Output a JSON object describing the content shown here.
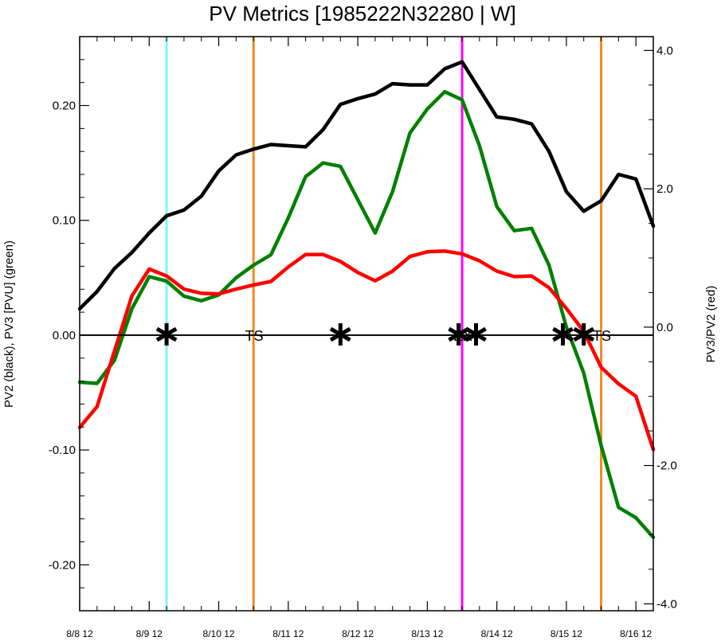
{
  "chart_data": {
    "type": "line",
    "title": "PV Metrics [1985222N32280 | W]",
    "ylabel_left": "PV2 (black), PV3 [PVU] (green)",
    "ylabel_right": "PV3/PV2 (red)",
    "x_ticks": [
      {
        "x": 0,
        "label": "8/8 12"
      },
      {
        "x": 1,
        "label": "8/9 12"
      },
      {
        "x": 2,
        "label": "8/10 12"
      },
      {
        "x": 3,
        "label": "8/11 12"
      },
      {
        "x": 4,
        "label": "8/12 12"
      },
      {
        "x": 5,
        "label": "8/13 12"
      },
      {
        "x": 6,
        "label": "8/14 12"
      },
      {
        "x": 7,
        "label": "8/15 12"
      },
      {
        "x": 8,
        "label": "8/16 12"
      }
    ],
    "xlim": [
      0,
      8.25
    ],
    "ylim_left": [
      -0.24,
      0.26
    ],
    "ylim_right": [
      -4.1,
      4.2
    ],
    "left_ticks": [
      {
        "v": 0.2,
        "label": "0.20"
      },
      {
        "v": 0.1,
        "label": "0.10"
      },
      {
        "v": 0.0,
        "label": "0.00"
      },
      {
        "v": -0.1,
        "label": "-0.10"
      },
      {
        "v": -0.2,
        "label": "-0.20"
      }
    ],
    "right_ticks": [
      {
        "v": 4.0,
        "label": "4.0"
      },
      {
        "v": 2.0,
        "label": "2.0"
      },
      {
        "v": 0.0,
        "label": "0.0"
      },
      {
        "v": -2.0,
        "label": "-2.0"
      },
      {
        "v": -4.0,
        "label": "-4.0"
      }
    ],
    "series": [
      {
        "axis": "left",
        "color": "#000000",
        "values": [
          [
            0.0,
            0.023
          ],
          [
            0.25,
            0.038
          ],
          [
            0.5,
            0.058
          ],
          [
            0.75,
            0.072
          ],
          [
            1.0,
            0.089
          ],
          [
            1.25,
            0.104
          ],
          [
            1.5,
            0.109
          ],
          [
            1.75,
            0.121
          ],
          [
            2.0,
            0.143
          ],
          [
            2.25,
            0.157
          ],
          [
            2.5,
            0.162
          ],
          [
            2.75,
            0.166
          ],
          [
            3.0,
            0.165
          ],
          [
            3.25,
            0.164
          ],
          [
            3.5,
            0.179
          ],
          [
            3.75,
            0.201
          ],
          [
            4.0,
            0.206
          ],
          [
            4.25,
            0.21
          ],
          [
            4.5,
            0.219
          ],
          [
            4.75,
            0.218
          ],
          [
            5.0,
            0.218
          ],
          [
            5.25,
            0.232
          ],
          [
            5.5,
            0.238
          ],
          [
            5.75,
            0.214
          ],
          [
            6.0,
            0.19
          ],
          [
            6.25,
            0.188
          ],
          [
            6.5,
            0.184
          ],
          [
            6.75,
            0.16
          ],
          [
            7.0,
            0.125
          ],
          [
            7.25,
            0.108
          ],
          [
            7.5,
            0.117
          ],
          [
            7.75,
            0.14
          ],
          [
            8.0,
            0.136
          ],
          [
            8.25,
            0.095
          ]
        ]
      },
      {
        "axis": "left",
        "color": "#008000",
        "values": [
          [
            0.0,
            -0.041
          ],
          [
            0.25,
            -0.042
          ],
          [
            0.5,
            -0.022
          ],
          [
            0.75,
            0.023
          ],
          [
            1.0,
            0.051
          ],
          [
            1.25,
            0.047
          ],
          [
            1.5,
            0.034
          ],
          [
            1.75,
            0.03
          ],
          [
            2.0,
            0.035
          ],
          [
            2.25,
            0.05
          ],
          [
            2.5,
            0.061
          ],
          [
            2.75,
            0.07
          ],
          [
            3.0,
            0.102
          ],
          [
            3.25,
            0.138
          ],
          [
            3.5,
            0.15
          ],
          [
            3.75,
            0.147
          ],
          [
            4.0,
            0.118
          ],
          [
            4.25,
            0.089
          ],
          [
            4.5,
            0.125
          ],
          [
            4.75,
            0.176
          ],
          [
            5.0,
            0.197
          ],
          [
            5.25,
            0.212
          ],
          [
            5.5,
            0.205
          ],
          [
            5.75,
            0.165
          ],
          [
            6.0,
            0.112
          ],
          [
            6.25,
            0.091
          ],
          [
            6.5,
            0.093
          ],
          [
            6.75,
            0.061
          ],
          [
            7.0,
            0.007
          ],
          [
            7.25,
            -0.033
          ],
          [
            7.5,
            -0.096
          ],
          [
            7.75,
            -0.15
          ],
          [
            8.0,
            -0.159
          ],
          [
            8.25,
            -0.176
          ]
        ]
      },
      {
        "axis": "right",
        "color": "#ff0000",
        "values": [
          [
            0.0,
            -1.45
          ],
          [
            0.25,
            -1.15
          ],
          [
            0.5,
            -0.35
          ],
          [
            0.75,
            0.45
          ],
          [
            1.0,
            0.84
          ],
          [
            1.25,
            0.74
          ],
          [
            1.5,
            0.55
          ],
          [
            1.75,
            0.49
          ],
          [
            2.0,
            0.48
          ],
          [
            2.25,
            0.55
          ],
          [
            2.5,
            0.61
          ],
          [
            2.75,
            0.66
          ],
          [
            3.0,
            0.87
          ],
          [
            3.25,
            1.05
          ],
          [
            3.5,
            1.05
          ],
          [
            3.75,
            0.95
          ],
          [
            4.0,
            0.79
          ],
          [
            4.25,
            0.67
          ],
          [
            4.5,
            0.81
          ],
          [
            4.75,
            1.02
          ],
          [
            5.0,
            1.09
          ],
          [
            5.25,
            1.1
          ],
          [
            5.5,
            1.06
          ],
          [
            5.75,
            0.96
          ],
          [
            6.0,
            0.81
          ],
          [
            6.25,
            0.73
          ],
          [
            6.5,
            0.74
          ],
          [
            6.75,
            0.57
          ],
          [
            7.0,
            0.27
          ],
          [
            7.25,
            -0.06
          ],
          [
            7.5,
            -0.58
          ],
          [
            7.75,
            -0.82
          ],
          [
            8.0,
            -1.0
          ],
          [
            8.25,
            -1.77
          ]
        ]
      }
    ],
    "vlines": [
      {
        "x": 1.25,
        "color": "#7ff5fa"
      },
      {
        "x": 2.5,
        "color": "#f08c1e"
      },
      {
        "x": 5.5,
        "color": "#ff00ff"
      },
      {
        "x": 7.5,
        "color": "#f08c1e"
      }
    ],
    "markers": [
      1.25,
      3.75,
      5.45,
      5.7,
      6.95,
      7.25
    ],
    "annotations": [
      {
        "x": 2.5,
        "text": "TS"
      },
      {
        "x": 5.5,
        "text": "EX"
      },
      {
        "x": 7.5,
        "text": "TS"
      }
    ]
  }
}
